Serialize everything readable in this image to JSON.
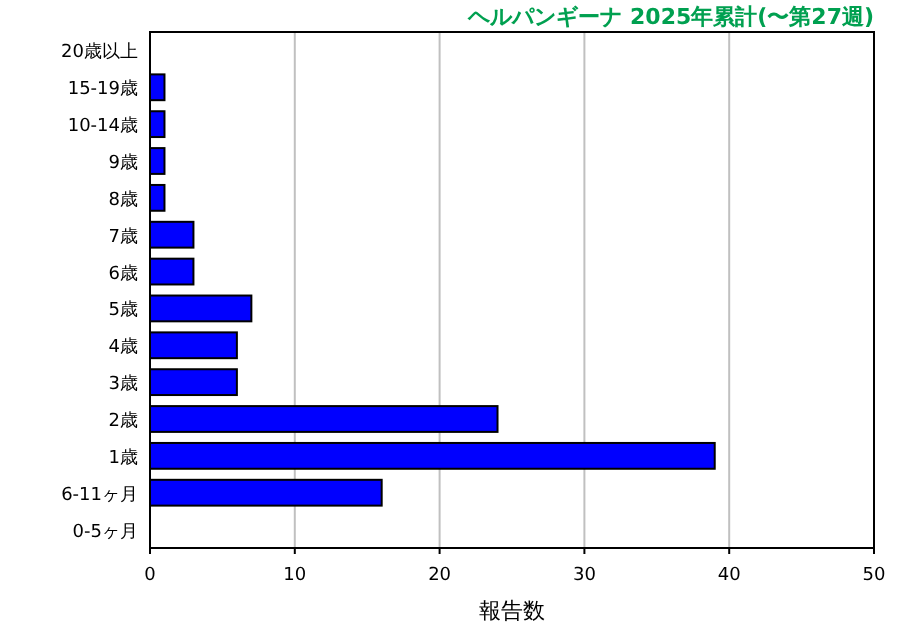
{
  "chart_data": {
    "type": "bar",
    "orientation": "horizontal",
    "title": "ヘルパンギーナ 2025年累計(〜第27週)",
    "xlabel": "報告数",
    "categories": [
      "20歳以上",
      "15-19歳",
      "10-14歳",
      "9歳",
      "8歳",
      "7歳",
      "6歳",
      "5歳",
      "4歳",
      "3歳",
      "2歳",
      "1歳",
      "6-11ヶ月",
      "0-5ヶ月"
    ],
    "values": [
      0,
      1,
      1,
      1,
      1,
      3,
      3,
      7,
      6,
      6,
      24,
      39,
      16,
      0
    ],
    "color": "#0000ff",
    "xlim": [
      0,
      50
    ],
    "xticks": [
      0,
      10,
      20,
      30,
      40,
      50
    ],
    "grid": "x"
  }
}
